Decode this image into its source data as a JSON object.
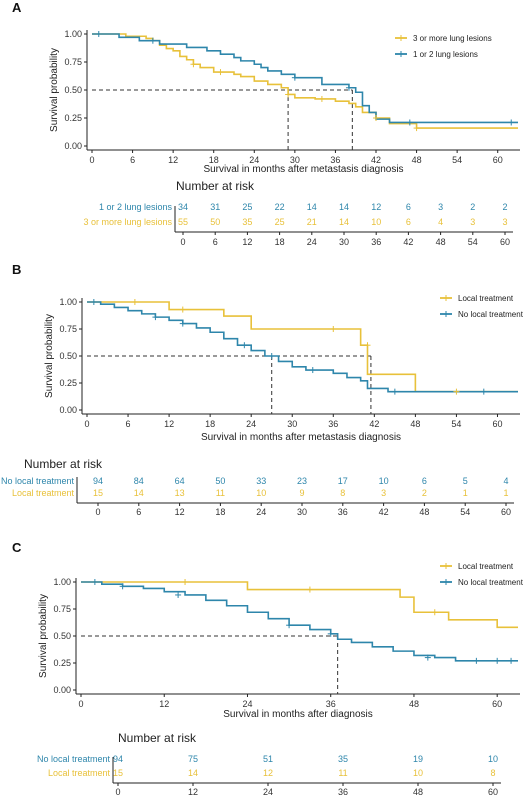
{
  "colors": {
    "gold": "#E8C13A",
    "blue": "#2E86AB",
    "axis": "#222222",
    "dashed": "#333333"
  },
  "chart_data": [
    {
      "id": "A",
      "type": "line",
      "step": true,
      "title": "",
      "xlabel": "Survival in months after metastasis diagnosis",
      "ylabel": "Survival probability",
      "xlim": [
        0,
        63
      ],
      "ylim": [
        0,
        1
      ],
      "xticks": [
        0,
        6,
        12,
        18,
        24,
        30,
        36,
        42,
        48,
        54,
        60
      ],
      "yticks": [
        "0.00",
        "0.25",
        "0.50",
        "0.75",
        "1.00"
      ],
      "legend_position": "top-right",
      "median_survival": {
        "y": 0.5,
        "x": [
          29,
          38.5
        ]
      },
      "series": [
        {
          "name": "3 or more lung lesions",
          "color": "gold",
          "points": [
            [
              0,
              1
            ],
            [
              5,
              0.98
            ],
            [
              8,
              0.96
            ],
            [
              9,
              0.94
            ],
            [
              10,
              0.9
            ],
            [
              11,
              0.87
            ],
            [
              12,
              0.85
            ],
            [
              13,
              0.8
            ],
            [
              14,
              0.77
            ],
            [
              15,
              0.73
            ],
            [
              16,
              0.7
            ],
            [
              18,
              0.66
            ],
            [
              21,
              0.64
            ],
            [
              22,
              0.62
            ],
            [
              24,
              0.58
            ],
            [
              26,
              0.55
            ],
            [
              28,
              0.52
            ],
            [
              29,
              0.46
            ],
            [
              30,
              0.43
            ],
            [
              33,
              0.42
            ],
            [
              36,
              0.4
            ],
            [
              38,
              0.38
            ],
            [
              39,
              0.35
            ],
            [
              40,
              0.3
            ],
            [
              42,
              0.25
            ],
            [
              44,
              0.2
            ],
            [
              48,
              0.16
            ],
            [
              63,
              0.16
            ]
          ]
        },
        {
          "name": "1 or 2 lung lesions",
          "color": "blue",
          "points": [
            [
              0,
              1
            ],
            [
              4,
              0.97
            ],
            [
              7,
              0.94
            ],
            [
              10,
              0.91
            ],
            [
              14,
              0.88
            ],
            [
              17,
              0.85
            ],
            [
              19,
              0.82
            ],
            [
              21,
              0.79
            ],
            [
              22,
              0.76
            ],
            [
              24,
              0.73
            ],
            [
              25,
              0.7
            ],
            [
              26,
              0.67
            ],
            [
              28,
              0.64
            ],
            [
              30,
              0.61
            ],
            [
              34,
              0.55
            ],
            [
              38,
              0.52
            ],
            [
              39,
              0.48
            ],
            [
              40,
              0.36
            ],
            [
              41,
              0.3
            ],
            [
              42,
              0.24
            ],
            [
              44,
              0.21
            ],
            [
              63,
              0.21
            ]
          ]
        }
      ],
      "censor_marks": [
        {
          "series": "3 or more lung lesions",
          "points": [
            [
              15,
              0.73
            ],
            [
              19,
              0.66
            ],
            [
              29,
              0.46
            ],
            [
              34,
              0.42
            ],
            [
              42,
              0.25
            ],
            [
              48,
              0.16
            ]
          ]
        },
        {
          "series": "1 or 2 lung lesions",
          "points": [
            [
              1,
              1
            ],
            [
              9,
              0.94
            ],
            [
              30,
              0.61
            ],
            [
              38,
              0.52
            ],
            [
              47,
              0.21
            ],
            [
              62,
              0.21
            ]
          ]
        }
      ],
      "risk_table": {
        "title": "Number at risk",
        "times": [
          "0",
          "6",
          "12",
          "18",
          "24",
          "30",
          "36",
          "42",
          "48",
          "54",
          "60"
        ],
        "rows": [
          {
            "label": "1 or 2 lung lesions",
            "color": "blue",
            "values": [
              "34",
              "31",
              "25",
              "22",
              "14",
              "14",
              "12",
              "6",
              "3",
              "2",
              "2"
            ]
          },
          {
            "label": "3 or more lung lesions",
            "color": "gold",
            "values": [
              "55",
              "50",
              "35",
              "25",
              "21",
              "14",
              "10",
              "6",
              "4",
              "3",
              "3"
            ]
          }
        ]
      }
    },
    {
      "id": "B",
      "type": "line",
      "step": true,
      "title": "",
      "xlabel": "Survival in months after metastasis diagnosis",
      "ylabel": "Survival probability",
      "xlim": [
        0,
        63
      ],
      "ylim": [
        0,
        1
      ],
      "xticks": [
        0,
        6,
        12,
        18,
        24,
        30,
        36,
        42,
        48,
        54,
        60
      ],
      "yticks": [
        "0.00",
        "0.25",
        "0.50",
        "0.75",
        "1.00"
      ],
      "legend_position": "top-right",
      "median_survival": {
        "y": 0.5,
        "x": [
          27,
          41.5
        ]
      },
      "series": [
        {
          "name": "Local treatment",
          "color": "gold",
          "points": [
            [
              0,
              1
            ],
            [
              12,
              0.93
            ],
            [
              20,
              0.87
            ],
            [
              24,
              0.75
            ],
            [
              40,
              0.6
            ],
            [
              41,
              0.33
            ],
            [
              48,
              0.17
            ],
            [
              63,
              0.17
            ]
          ]
        },
        {
          "name": "No local treatment",
          "color": "blue",
          "points": [
            [
              0,
              1
            ],
            [
              2,
              0.98
            ],
            [
              4,
              0.95
            ],
            [
              6,
              0.92
            ],
            [
              8,
              0.89
            ],
            [
              10,
              0.86
            ],
            [
              12,
              0.83
            ],
            [
              14,
              0.8
            ],
            [
              16,
              0.76
            ],
            [
              18,
              0.72
            ],
            [
              20,
              0.66
            ],
            [
              22,
              0.6
            ],
            [
              24,
              0.55
            ],
            [
              26,
              0.5
            ],
            [
              28,
              0.45
            ],
            [
              30,
              0.4
            ],
            [
              32,
              0.37
            ],
            [
              36,
              0.34
            ],
            [
              38,
              0.3
            ],
            [
              40,
              0.27
            ],
            [
              41,
              0.2
            ],
            [
              44,
              0.17
            ],
            [
              63,
              0.17
            ]
          ]
        }
      ],
      "censor_marks": [
        {
          "series": "Local treatment",
          "points": [
            [
              7,
              1
            ],
            [
              14,
              0.93
            ],
            [
              36,
              0.75
            ],
            [
              41,
              0.6
            ],
            [
              54,
              0.17
            ]
          ]
        },
        {
          "series": "No local treatment",
          "points": [
            [
              1,
              1
            ],
            [
              10,
              0.86
            ],
            [
              14,
              0.8
            ],
            [
              23,
              0.6
            ],
            [
              27,
              0.5
            ],
            [
              33,
              0.37
            ],
            [
              45,
              0.17
            ],
            [
              58,
              0.17
            ]
          ]
        }
      ],
      "risk_table": {
        "title": "Number at risk",
        "times": [
          "0",
          "6",
          "12",
          "18",
          "24",
          "30",
          "36",
          "42",
          "48",
          "54",
          "60"
        ],
        "rows": [
          {
            "label": "No local treatment",
            "color": "blue",
            "values": [
              "94",
              "84",
              "64",
              "50",
              "33",
              "23",
              "17",
              "10",
              "6",
              "5",
              "4"
            ]
          },
          {
            "label": "Local treatment",
            "color": "gold",
            "values": [
              "15",
              "14",
              "13",
              "11",
              "10",
              "9",
              "8",
              "3",
              "2",
              "1",
              "1"
            ]
          }
        ]
      }
    },
    {
      "id": "C",
      "type": "line",
      "step": true,
      "title": "",
      "xlabel": "Survival in months after diagnosis",
      "ylabel": "Survival probability",
      "xlim": [
        0,
        63
      ],
      "ylim": [
        0,
        1
      ],
      "xticks": [
        0,
        12,
        24,
        36,
        48,
        60
      ],
      "yticks": [
        "0.00",
        "0.25",
        "0.50",
        "0.75",
        "1.00"
      ],
      "legend_position": "top-right",
      "median_survival": {
        "y": 0.5,
        "x": [
          37
        ]
      },
      "series": [
        {
          "name": "Local treatment",
          "color": "gold",
          "points": [
            [
              0,
              1
            ],
            [
              24,
              0.93
            ],
            [
              46,
              0.86
            ],
            [
              48,
              0.72
            ],
            [
              53,
              0.65
            ],
            [
              60,
              0.58
            ],
            [
              63,
              0.58
            ]
          ]
        },
        {
          "name": "No local treatment",
          "color": "blue",
          "points": [
            [
              0,
              1
            ],
            [
              3,
              0.98
            ],
            [
              6,
              0.96
            ],
            [
              9,
              0.94
            ],
            [
              12,
              0.91
            ],
            [
              15,
              0.88
            ],
            [
              18,
              0.83
            ],
            [
              21,
              0.78
            ],
            [
              24,
              0.72
            ],
            [
              27,
              0.66
            ],
            [
              30,
              0.6
            ],
            [
              33,
              0.56
            ],
            [
              36,
              0.52
            ],
            [
              37,
              0.47
            ],
            [
              39,
              0.44
            ],
            [
              42,
              0.4
            ],
            [
              45,
              0.36
            ],
            [
              48,
              0.32
            ],
            [
              51,
              0.3
            ],
            [
              54,
              0.27
            ],
            [
              63,
              0.27
            ]
          ]
        }
      ],
      "censor_marks": [
        {
          "series": "Local treatment",
          "points": [
            [
              15,
              1
            ],
            [
              33,
              0.93
            ],
            [
              51,
              0.72
            ]
          ]
        },
        {
          "series": "No local treatment",
          "points": [
            [
              2,
              1
            ],
            [
              6,
              0.96
            ],
            [
              14,
              0.88
            ],
            [
              30,
              0.6
            ],
            [
              36,
              0.52
            ],
            [
              50,
              0.3
            ],
            [
              57,
              0.27
            ],
            [
              60,
              0.27
            ],
            [
              62,
              0.27
            ]
          ]
        }
      ],
      "risk_table": {
        "title": "Number at risk",
        "times": [
          "0",
          "12",
          "24",
          "36",
          "48",
          "60"
        ],
        "rows": [
          {
            "label": "No local treatment",
            "color": "blue",
            "values": [
              "94",
              "75",
              "51",
              "35",
              "19",
              "10"
            ]
          },
          {
            "label": "Local treatment",
            "color": "gold",
            "values": [
              "15",
              "14",
              "12",
              "11",
              "10",
              "8"
            ]
          }
        ]
      }
    }
  ]
}
